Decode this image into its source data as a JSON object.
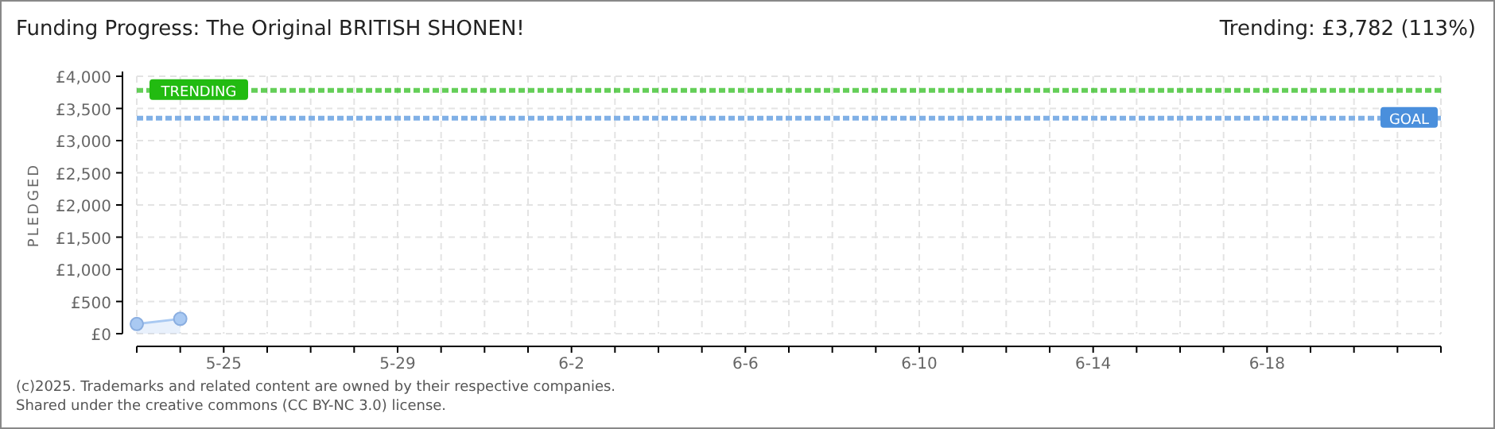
{
  "chart_data": {
    "type": "area",
    "title": "Funding Progress: The Original BRITISH SHONEN!",
    "ylabel": "PLEDGED",
    "annotations": [
      "Trending: £3,782 (113%)",
      "(c)2025. Trademarks and related content are owned by their respective companies.",
      "Shared under the creative commons (CC BY-NC 3.0) license."
    ],
    "x": [
      "2025-05-23",
      "2025-05-24"
    ],
    "series": [
      {
        "color": "#a9c9f2",
        "values": [
          150,
          230
        ]
      }
    ],
    "marker": "circle",
    "grid": true,
    "xlim": [
      "2025-05-23",
      "2025-06-22"
    ],
    "xticks": [
      {
        "value": "2025-05-23",
        "label": null
      },
      {
        "value": "2025-05-24",
        "label": null
      },
      {
        "value": "2025-05-25",
        "label": "5-25"
      },
      {
        "value": "2025-05-26",
        "label": null
      },
      {
        "value": "2025-05-27",
        "label": null
      },
      {
        "value": "2025-05-28",
        "label": null
      },
      {
        "value": "2025-05-29",
        "label": "5-29"
      },
      {
        "value": "2025-05-30",
        "label": null
      },
      {
        "value": "2025-05-31",
        "label": null
      },
      {
        "value": "2025-06-01",
        "label": null
      },
      {
        "value": "2025-06-02",
        "label": "6-2"
      },
      {
        "value": "2025-06-03",
        "label": null
      },
      {
        "value": "2025-06-04",
        "label": null
      },
      {
        "value": "2025-06-05",
        "label": null
      },
      {
        "value": "2025-06-06",
        "label": "6-6"
      },
      {
        "value": "2025-06-07",
        "label": null
      },
      {
        "value": "2025-06-08",
        "label": null
      },
      {
        "value": "2025-06-09",
        "label": null
      },
      {
        "value": "2025-06-10",
        "label": "6-10"
      },
      {
        "value": "2025-06-11",
        "label": null
      },
      {
        "value": "2025-06-12",
        "label": null
      },
      {
        "value": "2025-06-13",
        "label": null
      },
      {
        "value": "2025-06-14",
        "label": "6-14"
      },
      {
        "value": "2025-06-15",
        "label": null
      },
      {
        "value": "2025-06-16",
        "label": null
      },
      {
        "value": "2025-06-17",
        "label": null
      },
      {
        "value": "2025-06-18",
        "label": "6-18"
      },
      {
        "value": "2025-06-19",
        "label": null
      },
      {
        "value": "2025-06-20",
        "label": null
      },
      {
        "value": "2025-06-21",
        "label": null
      },
      {
        "value": "2025-06-22",
        "label": null
      }
    ],
    "ylim": [
      0,
      4000
    ],
    "yticks": [
      {
        "value": 0,
        "label": "£0"
      },
      {
        "value": 500,
        "label": "£500"
      },
      {
        "value": 1000,
        "label": "£1,000"
      },
      {
        "value": 1500,
        "label": "£1,500"
      },
      {
        "value": 2000,
        "label": "£2,000"
      },
      {
        "value": 2500,
        "label": "£2,500"
      },
      {
        "value": 3000,
        "label": "£3,000"
      },
      {
        "value": 3500,
        "label": "£3,500"
      },
      {
        "value": 4000,
        "label": "£4,000"
      }
    ],
    "ref_lines": [
      {
        "axis": "y",
        "value": 3782,
        "label": "TRENDING",
        "color": "#22bb11",
        "line_style": "dashed"
      },
      {
        "axis": "y",
        "value": 3350,
        "label": "GOAL",
        "color": "#4a8fdc",
        "line_style": "dashed"
      }
    ]
  }
}
